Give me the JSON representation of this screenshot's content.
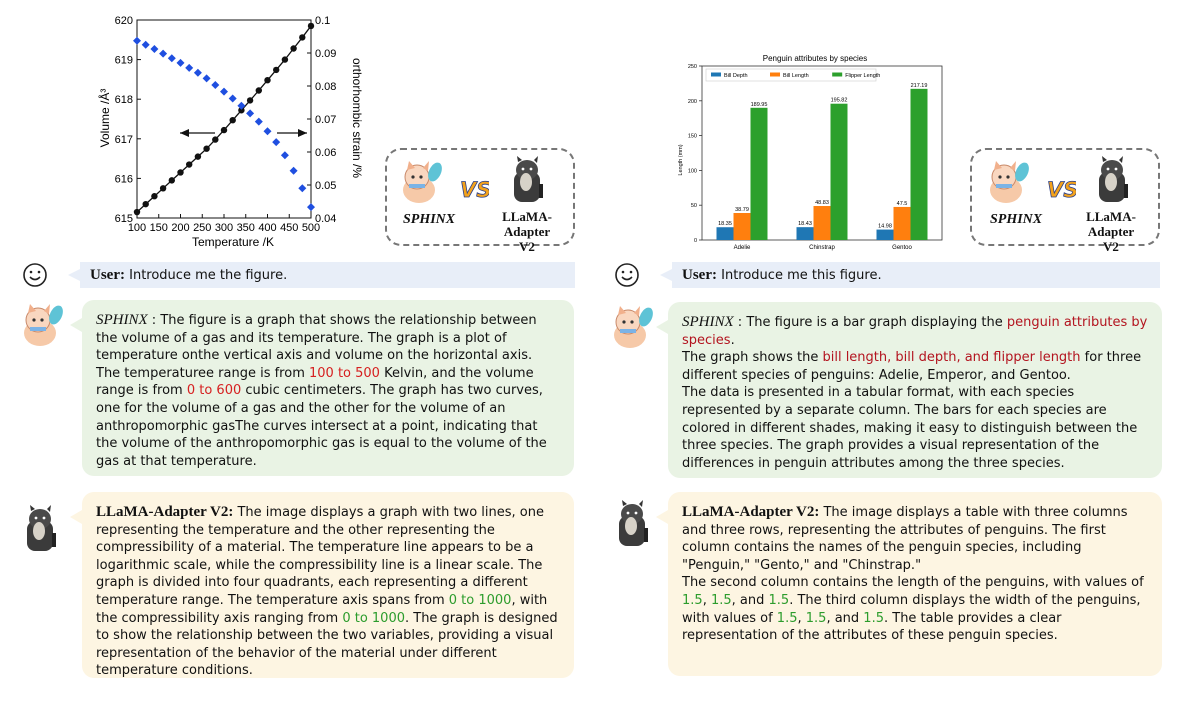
{
  "left": {
    "figure": {
      "chart_data": {
        "type": "line",
        "xlabel": "Temperature /K",
        "ylabel": "Volume /Å³",
        "y2label": "orthorhombic strain /%",
        "xlim": [
          100,
          500
        ],
        "ylim": [
          615,
          620
        ],
        "y2lim": [
          0.04,
          0.1
        ],
        "xticks": [
          "100",
          "150",
          "200",
          "250",
          "300",
          "350",
          "400",
          "450",
          "500"
        ],
        "yticks": [
          "615",
          "616",
          "617",
          "618",
          "619",
          "620"
        ],
        "y2ticks": [
          "0.04",
          "0.05",
          "0.06",
          "0.07",
          "0.08",
          "0.09",
          "0.1"
        ],
        "series": [
          {
            "axis": "left",
            "color": "#111111",
            "marker": "circle",
            "x": [
              100,
              120,
              140,
              160,
              180,
              200,
              220,
              240,
              260,
              280,
              300,
              320,
              340,
              360,
              380,
              400,
              420,
              440,
              460,
              480,
              500
            ],
            "y": [
              615.15,
              615.35,
              615.55,
              615.75,
              615.95,
              616.15,
              616.35,
              616.55,
              616.75,
              616.98,
              617.22,
              617.47,
              617.72,
              617.97,
              618.22,
              618.48,
              618.74,
              619.0,
              619.28,
              619.56,
              619.85
            ]
          },
          {
            "axis": "right",
            "color": "#1f4fe0",
            "marker": "diamond",
            "x": [
              100,
              120,
              140,
              160,
              180,
              200,
              220,
              240,
              260,
              280,
              300,
              320,
              340,
              360,
              380,
              400,
              420,
              440,
              460,
              480,
              500
            ],
            "y": [
              0.0937,
              0.0925,
              0.0912,
              0.0898,
              0.0884,
              0.087,
              0.0855,
              0.084,
              0.0823,
              0.0803,
              0.0783,
              0.0762,
              0.074,
              0.0717,
              0.0692,
              0.0663,
              0.063,
              0.059,
              0.0543,
              0.049,
              0.0433
            ]
          }
        ]
      }
    },
    "vs": {
      "sphinx": "SPHINX",
      "llama_line1": "LLaMA-Adapter",
      "llama_line2": "V2"
    },
    "user": {
      "lead": "User:",
      "text": "Introduce me the figure."
    },
    "sphinx_reply": {
      "lead": "SPHINX",
      "p1": " : The figure is a graph that shows the relationship between the volume of a gas and its temperature. The graph is a plot of temperature onthe vertical axis and volume on the horizontal axis. The temperaturee range is from ",
      "h1": "100 to 500",
      "p2": " Kelvin, and the volume range is from ",
      "h2": "0 to 600",
      "p3": " cubic centimeters. The graph has two curves, one for the volume of a gas and the other for the volume of an anthropomorphic gasThe curves intersect at a point, indicating that the volume of the anthropomorphic gas is equal to the volume of the gas at that temperature."
    },
    "llama_reply": {
      "lead": "LLaMA-Adapter V2:",
      "p1": " The image displays a graph with two lines, one representing the temperature and the other representing the compressibility of a material. The temperature line appears to be a logarithmic scale, while the compressibility line is a linear scale. The graph is divided into four quadrants, each representing a different temperature range. The temperature axis spans from ",
      "h1": "0 to 1000",
      "p2": ", with the compressibility axis ranging from ",
      "h2": "0 to 1000",
      "p3": ". The graph is designed to show the relationship between the two variables, providing a visual representation of the behavior of the material under different temperature conditions."
    }
  },
  "right": {
    "figure": {
      "chart_data": {
        "type": "bar",
        "title": "Penguin attributes by species",
        "ylabel": "Length (mm)",
        "ylim": [
          0,
          250
        ],
        "yticks": [
          "0",
          "50",
          "100",
          "150",
          "200",
          "250"
        ],
        "categories": [
          "Adelie",
          "Chinstrap",
          "Gentoo"
        ],
        "legend_position": "top-left",
        "series": [
          {
            "name": "Bill Depth",
            "color": "#1f77b4",
            "values": [
              18.35,
              18.43,
              14.98
            ],
            "labels": [
              "18.35",
              "18.43",
              "14.98"
            ]
          },
          {
            "name": "Bill Length",
            "color": "#ff7f0e",
            "values": [
              38.79,
              48.83,
              47.5
            ],
            "labels": [
              "38.79",
              "48.83",
              "47.5"
            ]
          },
          {
            "name": "Flipper Length",
            "color": "#2ca02c",
            "values": [
              189.95,
              195.82,
              217.19
            ],
            "labels": [
              "189.95",
              "195.82",
              "217.19"
            ]
          }
        ]
      }
    },
    "vs": {
      "sphinx": "SPHINX",
      "llama_line1": "LLaMA-Adapter",
      "llama_line2": "V2"
    },
    "user": {
      "lead": "User:",
      "text": "Introduce me this figure."
    },
    "sphinx_reply": {
      "lead": "SPHINX",
      "p1": " : The figure is a bar graph displaying the ",
      "h1": "penguin attributes by species",
      "p2": ".",
      "p3": "The graph shows the ",
      "h2": "bill length, bill depth, and flipper length",
      "p4": " for three different species of penguins: Adelie, Emperor, and Gentoo.",
      "p5": "The data is presented in a tabular format, with each species represented by a separate column. The bars for each species are colored in different shades, making it easy to distinguish between the three species. The graph provides a visual representation of the differences in penguin attributes among the three species."
    },
    "llama_reply": {
      "lead": "LLaMA-Adapter V2:",
      "p1": " The image displays a table with three columns and three rows, representing the attributes of penguins. The first column contains the names of the penguin species, including \"Penguin,\" \"Gento,\" and \"Chinstrap.\"",
      "p2": "The second column contains the length of the penguins, with values of ",
      "h1": "1.5",
      "c1": ", ",
      "h2": "1.5",
      "c2": ", and ",
      "h3": "1.5",
      "p3": ". The third column displays the width of the penguins, with values of ",
      "h4": "1.5",
      "c3": ", ",
      "h5": "1.5",
      "c4": ", and ",
      "h6": "1.5",
      "p4": ". The table provides a clear representation of the attributes of these penguin species."
    }
  },
  "colors": {
    "highlight_red": "#d62020",
    "highlight_green": "#2c9c2c",
    "bubble_green": "#e9f3e4",
    "bubble_yellow": "#fdf5e2"
  }
}
